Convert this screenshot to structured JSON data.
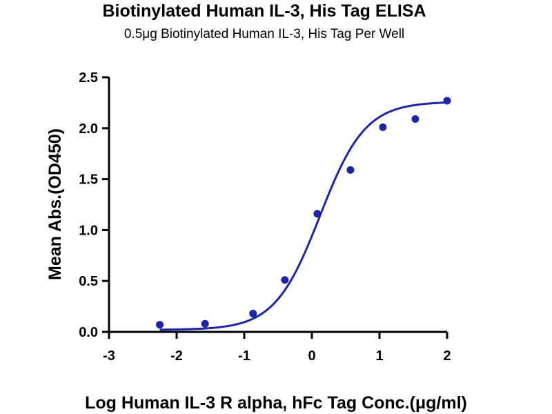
{
  "chart_data": {
    "type": "scatter",
    "title": "Biotinylated Human IL-3, His Tag ELISA",
    "subtitle": "0.5μg Biotinylated Human IL-3, His Tag Per Well",
    "xlabel": "Log Human IL-3 R alpha, hFc Tag Conc.(μg/ml)",
    "ylabel": "Mean Abs.(OD450)",
    "xlim": [
      -3,
      2
    ],
    "ylim": [
      0,
      2.5
    ],
    "xticks": [
      "-3",
      "-2",
      "-1",
      "0",
      "1",
      "2"
    ],
    "yticks": [
      "0.0",
      "0.5",
      "1.0",
      "1.5",
      "2.0",
      "2.5"
    ],
    "grid": false,
    "series": [
      {
        "points": [
          {
            "x": -2.25,
            "y": 0.07
          },
          {
            "x": -1.58,
            "y": 0.08
          },
          {
            "x": -0.87,
            "y": 0.18
          },
          {
            "x": -0.4,
            "y": 0.51
          },
          {
            "x": 0.08,
            "y": 1.16
          },
          {
            "x": 0.57,
            "y": 1.59
          },
          {
            "x": 1.05,
            "y": 2.01
          },
          {
            "x": 1.53,
            "y": 2.09
          },
          {
            "x": 2.0,
            "y": 2.27
          }
        ],
        "fit": "four-parameter logistic",
        "fit_params": {
          "bottom": 0.02,
          "top": 2.26,
          "ec50_log": 0.12,
          "hill": 1.3
        },
        "color": "#1e26a8"
      }
    ]
  }
}
